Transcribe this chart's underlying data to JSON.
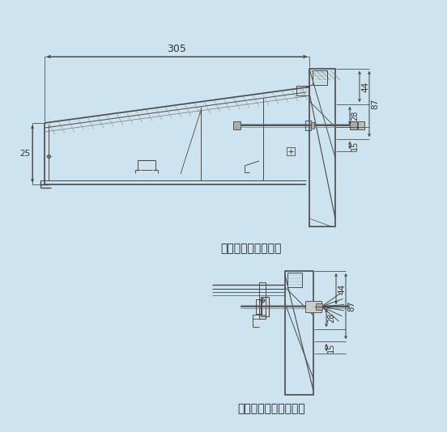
{
  "bg_color": "#cde4f0",
  "line_color": "#4a4a4a",
  "dim_color": "#333333",
  "title1": "（内部ナット止式）",
  "title2": "（外部アンカー止式）",
  "dim_305": "305",
  "dim_25": "25",
  "dim_44": "44",
  "dim_87": "87",
  "dim_28": "28",
  "dim_15": "15",
  "fontsize_label": 10,
  "fontsize_dim": 7.5
}
